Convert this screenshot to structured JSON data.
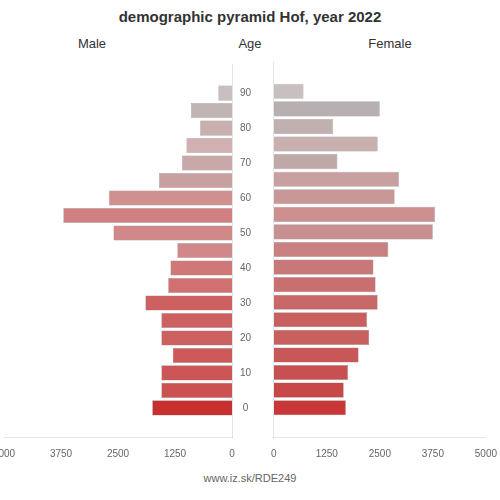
{
  "chart_data": {
    "type": "bar",
    "orientation": "horizontal",
    "title": "demographic pyramid Hof, year 2022",
    "y_label": "Age",
    "annotations": [
      "www.iz.sk/RDE249"
    ],
    "y": [
      0,
      5,
      10,
      15,
      20,
      25,
      30,
      35,
      40,
      45,
      50,
      55,
      60,
      65,
      70,
      75,
      80,
      85,
      90
    ],
    "series": [
      {
        "name": "Male",
        "values": [
          1750,
          1550,
          1550,
          1300,
          1550,
          1550,
          1900,
          1400,
          1350,
          1200,
          2600,
          3700,
          2700,
          1600,
          1100,
          1000,
          700,
          900,
          300
        ],
        "colors": [
          "#c83030",
          "#cc5252",
          "#cc5555",
          "#cc5858",
          "#cd6060",
          "#cd6060",
          "#cd6060",
          "#d07070",
          "#d07878",
          "#d08888",
          "#d08888",
          "#d08080",
          "#d09090",
          "#c8a0a0",
          "#c8a8a8",
          "#d0b0b0",
          "#c8b0b0",
          "#c0b4b4",
          "#c8c0c0"
        ]
      },
      {
        "name": "Female",
        "values": [
          1700,
          1650,
          1750,
          2000,
          2250,
          2200,
          2450,
          2400,
          2350,
          2700,
          3750,
          3800,
          2850,
          2950,
          1500,
          2450,
          1400,
          2500,
          700
        ],
        "colors": [
          "#c83838",
          "#c84848",
          "#c85050",
          "#c85858",
          "#c86060",
          "#c86060",
          "#c86868",
          "#c87070",
          "#c87878",
          "#c88080",
          "#c89090",
          "#cc9090",
          "#c89898",
          "#c8a0a0",
          "#c0a8a8",
          "#c8b0b0",
          "#c0b0b0",
          "#b8b0b0",
          "#c8c0c0"
        ]
      }
    ],
    "xlim": [
      0,
      5000
    ],
    "xticks": [
      0,
      1250,
      2500,
      3750,
      5000
    ],
    "ylim": [
      -3,
      93
    ],
    "yticks": [
      0,
      10,
      20,
      30,
      40,
      50,
      60,
      70,
      80,
      90
    ],
    "grid": false
  }
}
